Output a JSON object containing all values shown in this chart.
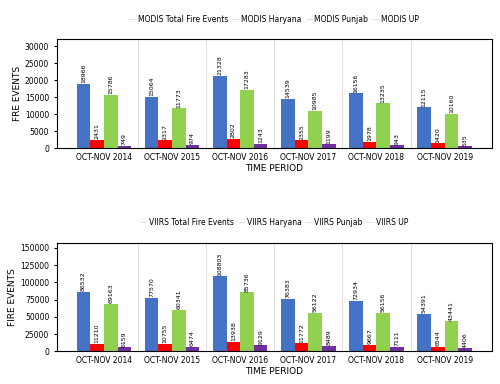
{
  "modis": {
    "categories": [
      "OCT-NOV 2014",
      "OCT-NOV 2015",
      "OCT-NOV 2016",
      "OCT-NOV 2017",
      "OCT-NOV 2018",
      "OCT-NOV 2019"
    ],
    "total": [
      18966,
      15064,
      21328,
      14539,
      16156,
      12115
    ],
    "haryana": [
      2431,
      2317,
      2802,
      2355,
      1978,
      1420
    ],
    "punjab": [
      15786,
      11773,
      17283,
      10985,
      13235,
      10160
    ],
    "up": [
      749,
      974,
      1243,
      1199,
      943,
      535
    ],
    "ylabel": "FRE EVENTS",
    "legend": [
      "MODIS Total Fire Events",
      "MODIS Haryana",
      "MODIS Punjab",
      "MODIS UP"
    ]
  },
  "viirs": {
    "categories": [
      "OCT-NOV 2014",
      "OCT-NOV 2015",
      "OCT-NOV 2016",
      "OCT-NOV 2017",
      "OCT-NOV 2018",
      "OCT-NOV 2019"
    ],
    "total": [
      86532,
      77570,
      108803,
      76383,
      72934,
      54391
    ],
    "haryana": [
      11210,
      10755,
      13938,
      11772,
      9667,
      6544
    ],
    "punjab": [
      69163,
      60341,
      85736,
      56122,
      56156,
      43441
    ],
    "up": [
      6159,
      6474,
      9129,
      8489,
      7111,
      4406
    ],
    "ylabel": "FIRE EVENTS",
    "legend": [
      "VIIRS Total Fire Events",
      "VIIRS Haryana",
      "VIIRS Punjab",
      "VIIRS UP"
    ]
  },
  "xlabel": "TIME PERIOD",
  "colors": [
    "#4472c4",
    "#ff0000",
    "#92d050",
    "#7030a0"
  ],
  "bar_width": 0.2,
  "fontsize_ticks": 5.5,
  "fontsize_label": 6.5,
  "fontsize_legend": 5.5,
  "fontsize_annotation": 4.5
}
